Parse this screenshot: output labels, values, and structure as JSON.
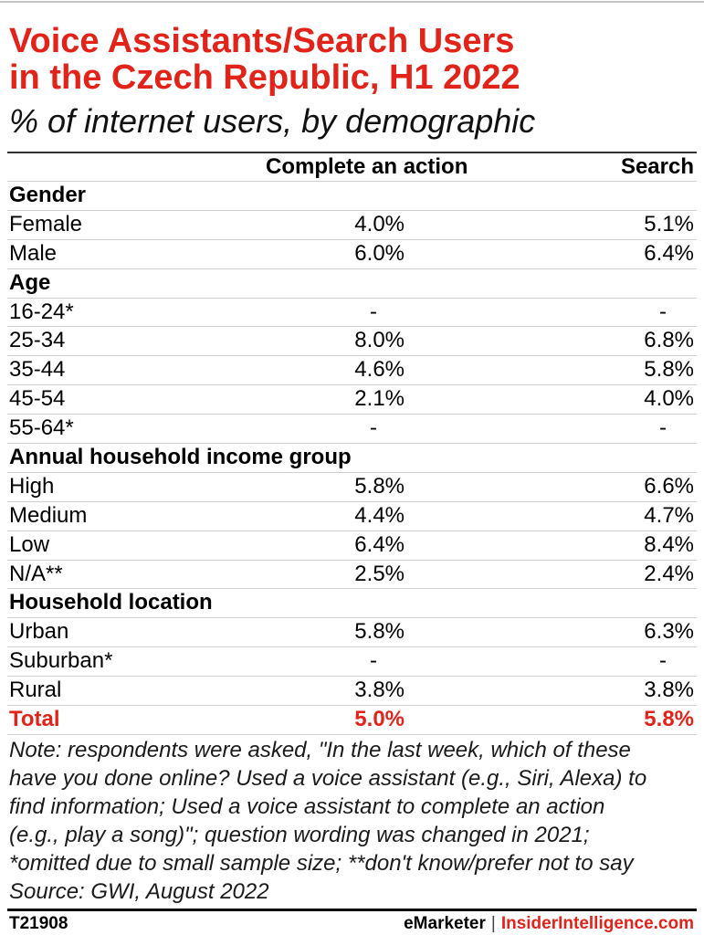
{
  "colors": {
    "accent_red": "#e2231a",
    "text": "#000000",
    "row_rule": "#cfcfcf",
    "heavy_rule": "#000000"
  },
  "chart_data": {
    "type": "table",
    "title": "Voice Assistants/Search Users in the Czech Republic, H1 2022",
    "subtitle": "% of internet users, by demographic",
    "columns": [
      "Complete an action",
      "Search"
    ],
    "groups": [
      {
        "label": "Gender",
        "rows": [
          {
            "label": "Female",
            "values": [
              "4.0%",
              "5.1%"
            ]
          },
          {
            "label": "Male",
            "values": [
              "6.0%",
              "6.4%"
            ]
          }
        ]
      },
      {
        "label": "Age",
        "rows": [
          {
            "label": "16-24*",
            "values": [
              "-",
              "-"
            ]
          },
          {
            "label": "25-34",
            "values": [
              "8.0%",
              "6.8%"
            ]
          },
          {
            "label": "35-44",
            "values": [
              "4.6%",
              "5.8%"
            ]
          },
          {
            "label": "45-54",
            "values": [
              "2.1%",
              "4.0%"
            ]
          },
          {
            "label": "55-64*",
            "values": [
              "-",
              "-"
            ]
          }
        ]
      },
      {
        "label": "Annual household income group",
        "rows": [
          {
            "label": "High",
            "values": [
              "5.8%",
              "6.6%"
            ]
          },
          {
            "label": "Medium",
            "values": [
              "4.4%",
              "4.7%"
            ]
          },
          {
            "label": "Low",
            "values": [
              "6.4%",
              "8.4%"
            ]
          },
          {
            "label": "N/A**",
            "values": [
              "2.5%",
              "2.4%"
            ]
          }
        ]
      },
      {
        "label": "Household location",
        "rows": [
          {
            "label": "Urban",
            "values": [
              "5.8%",
              "6.3%"
            ]
          },
          {
            "label": "Suburban*",
            "values": [
              "-",
              "-"
            ]
          },
          {
            "label": "Rural",
            "values": [
              "3.8%",
              "3.8%"
            ]
          }
        ]
      }
    ],
    "total": {
      "label": "Total",
      "values": [
        "5.0%",
        "5.8%"
      ]
    }
  },
  "note_lines": [
    "Note: respondents were asked, \"In the last week, which of these",
    "have you done online? Used a voice assistant (e.g., Siri, Alexa) to",
    "find information; Used a voice assistant to complete an action",
    "(e.g., play a song)\"; question wording was changed in 2021;",
    "*omitted due to small sample size; **don't know/prefer not to say"
  ],
  "source": "Source: GWI, August 2022",
  "footer": {
    "chart_id": "T21908",
    "brand": "eMarketer",
    "separator": "|",
    "site": "InsiderIntelligence.com"
  }
}
